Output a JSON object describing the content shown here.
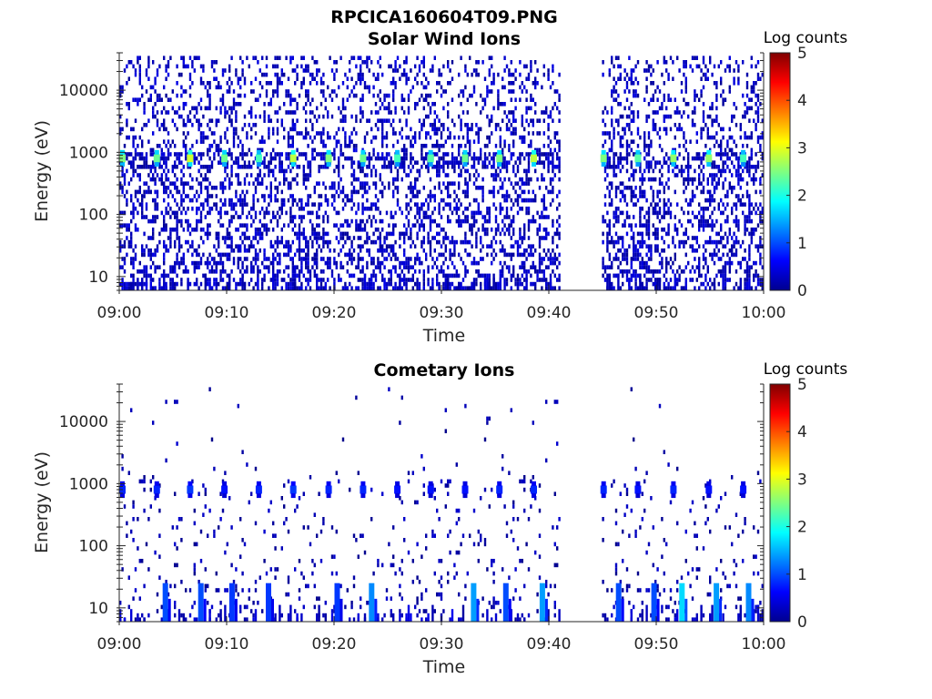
{
  "figure": {
    "title": "RPCICA160604T09.PNG"
  },
  "chart_data": [
    {
      "type": "heatmap",
      "title": "Solar Wind Ions",
      "xlabel": "Time",
      "ylabel": "Energy (eV)",
      "x_ticks": [
        "09:00",
        "09:10",
        "09:20",
        "09:30",
        "09:40",
        "09:50",
        "10:00"
      ],
      "xlim_minutes": [
        0,
        60
      ],
      "y_ticks": [
        "10",
        "100",
        "1000",
        "10000"
      ],
      "ylim_ev": [
        6,
        40000
      ],
      "y_scale": "log",
      "colorbar": {
        "label": "Log counts",
        "ticks": [
          "0",
          "1",
          "2",
          "3",
          "4",
          "5"
        ],
        "range": [
          0,
          5
        ]
      },
      "data_gap_minutes": [
        41,
        45
      ],
      "background_level": 0.3,
      "peak_energy_ev": 800,
      "peaks": [
        {
          "t": 0.3,
          "value": 2.5
        },
        {
          "t": 3.5,
          "value": 2.4
        },
        {
          "t": 6.6,
          "value": 2.9
        },
        {
          "t": 9.8,
          "value": 2.4
        },
        {
          "t": 13.0,
          "value": 2.2
        },
        {
          "t": 16.2,
          "value": 2.8
        },
        {
          "t": 19.5,
          "value": 2.5
        },
        {
          "t": 22.7,
          "value": 2.4
        },
        {
          "t": 25.9,
          "value": 2.2
        },
        {
          "t": 29.0,
          "value": 2.3
        },
        {
          "t": 32.2,
          "value": 2.4
        },
        {
          "t": 35.4,
          "value": 2.5
        },
        {
          "t": 38.6,
          "value": 2.8
        },
        {
          "t": 45.1,
          "value": 2.5
        },
        {
          "t": 48.3,
          "value": 2.3
        },
        {
          "t": 51.6,
          "value": 2.6
        },
        {
          "t": 54.9,
          "value": 2.6
        },
        {
          "t": 58.1,
          "value": 2.2
        }
      ]
    },
    {
      "type": "heatmap",
      "title": "Cometary Ions",
      "xlabel": "Time",
      "ylabel": "Energy (eV)",
      "x_ticks": [
        "09:00",
        "09:10",
        "09:20",
        "09:30",
        "09:40",
        "09:50",
        "10:00"
      ],
      "xlim_minutes": [
        0,
        60
      ],
      "y_ticks": [
        "10",
        "100",
        "1000",
        "10000"
      ],
      "ylim_ev": [
        6,
        40000
      ],
      "y_scale": "log",
      "colorbar": {
        "label": "Log counts",
        "ticks": [
          "0",
          "1",
          "2",
          "3",
          "4",
          "5"
        ],
        "range": [
          0,
          5
        ]
      },
      "data_gap_minutes": [
        41,
        45
      ],
      "peak_energy_ev": 800,
      "peaks": [
        {
          "t": 0.3,
          "value": 0.8
        },
        {
          "t": 3.5,
          "value": 0.8
        },
        {
          "t": 6.6,
          "value": 0.9
        },
        {
          "t": 9.8,
          "value": 0.7
        },
        {
          "t": 13.0,
          "value": 0.8
        },
        {
          "t": 16.2,
          "value": 0.9
        },
        {
          "t": 19.5,
          "value": 0.8
        },
        {
          "t": 22.7,
          "value": 0.8
        },
        {
          "t": 25.9,
          "value": 0.7
        },
        {
          "t": 29.0,
          "value": 0.7
        },
        {
          "t": 32.2,
          "value": 0.7
        },
        {
          "t": 35.4,
          "value": 0.8
        },
        {
          "t": 38.6,
          "value": 0.8
        },
        {
          "t": 45.1,
          "value": 0.8
        },
        {
          "t": 48.3,
          "value": 0.7
        },
        {
          "t": 51.6,
          "value": 0.8
        },
        {
          "t": 54.9,
          "value": 0.7
        },
        {
          "t": 58.1,
          "value": 0.7
        }
      ],
      "low_energy_bursts": [
        {
          "t": 4.3,
          "value": 1.0
        },
        {
          "t": 7.6,
          "value": 1.0
        },
        {
          "t": 10.5,
          "value": 0.9
        },
        {
          "t": 13.9,
          "value": 0.9
        },
        {
          "t": 20.3,
          "value": 0.9
        },
        {
          "t": 23.5,
          "value": 1.3
        },
        {
          "t": 33.0,
          "value": 1.4
        },
        {
          "t": 36.0,
          "value": 1.0
        },
        {
          "t": 39.4,
          "value": 1.4
        },
        {
          "t": 46.5,
          "value": 1.0
        },
        {
          "t": 49.8,
          "value": 1.0
        },
        {
          "t": 52.4,
          "value": 1.7
        },
        {
          "t": 55.6,
          "value": 1.4
        },
        {
          "t": 58.6,
          "value": 1.3
        }
      ]
    }
  ]
}
